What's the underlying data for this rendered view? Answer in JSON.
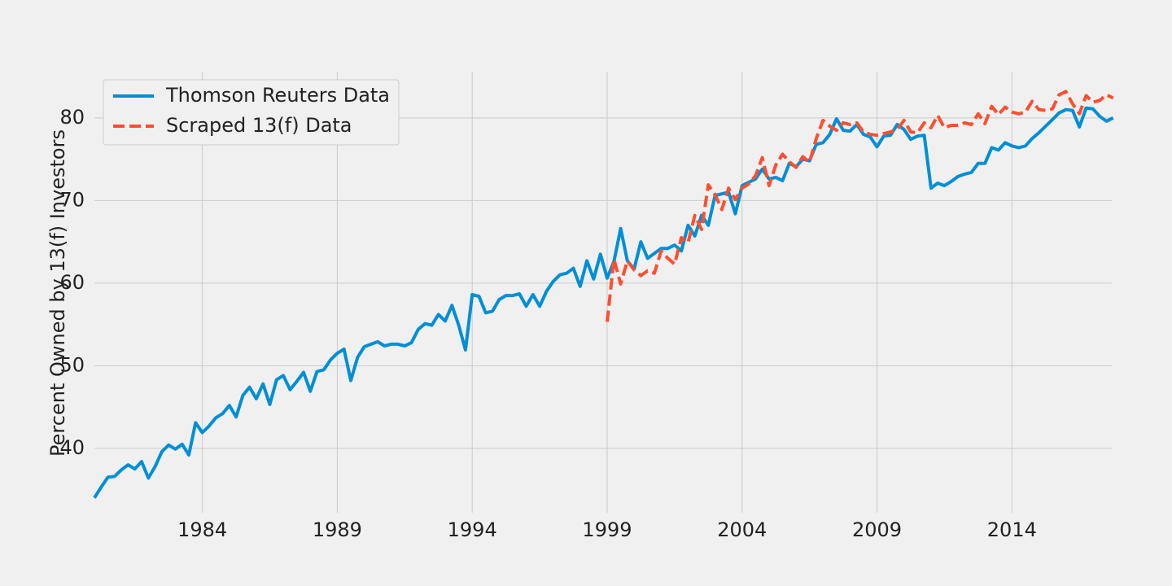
{
  "chart_data": {
    "type": "line",
    "title": "",
    "xlabel": "",
    "ylabel": "Percent Owned by 13(f) Investors",
    "xlim": [
      1980.0,
      2017.7
    ],
    "ylim": [
      32.2,
      85.6
    ],
    "xticks": [
      1984,
      1989,
      1994,
      1999,
      2004,
      2009,
      2014
    ],
    "xtick_labels": [
      "1984",
      "1989",
      "1994",
      "1999",
      "2004",
      "2009",
      "2014"
    ],
    "yticks": [
      40,
      50,
      60,
      70,
      80
    ],
    "ytick_labels": [
      "40",
      "50",
      "60",
      "70",
      "80"
    ],
    "grid": true,
    "legend_position": "upper-left",
    "series": [
      {
        "name": "Thomson Reuters Data",
        "color": "#008fd5",
        "dash": "solid",
        "x": [
          1980.0,
          1980.25,
          1980.5,
          1980.75,
          1981.0,
          1981.25,
          1981.5,
          1981.75,
          1982.0,
          1982.25,
          1982.5,
          1982.75,
          1983.0,
          1983.25,
          1983.5,
          1983.75,
          1984.0,
          1984.25,
          1984.5,
          1984.75,
          1985.0,
          1985.25,
          1985.5,
          1985.75,
          1986.0,
          1986.25,
          1986.5,
          1986.75,
          1987.0,
          1987.25,
          1987.5,
          1987.75,
          1988.0,
          1988.25,
          1988.5,
          1988.75,
          1989.0,
          1989.25,
          1989.5,
          1989.75,
          1990.0,
          1990.25,
          1990.5,
          1990.75,
          1991.0,
          1991.25,
          1991.5,
          1991.75,
          1992.0,
          1992.25,
          1992.5,
          1992.75,
          1993.0,
          1993.25,
          1993.5,
          1993.75,
          1994.0,
          1994.25,
          1994.5,
          1994.75,
          1995.0,
          1995.25,
          1995.5,
          1995.75,
          1996.0,
          1996.25,
          1996.5,
          1996.75,
          1997.0,
          1997.25,
          1997.5,
          1997.75,
          1998.0,
          1998.25,
          1998.5,
          1998.75,
          1999.0,
          1999.25,
          1999.5,
          1999.75,
          2000.0,
          2000.25,
          2000.5,
          2000.75,
          2001.0,
          2001.25,
          2001.5,
          2001.75,
          2002.0,
          2002.25,
          2002.5,
          2002.75,
          2003.0,
          2003.25,
          2003.5,
          2003.75,
          2004.0,
          2004.25,
          2004.5,
          2004.75,
          2005.0,
          2005.25,
          2005.5,
          2005.75,
          2006.0,
          2006.25,
          2006.5,
          2006.75,
          2007.0,
          2007.25,
          2007.5,
          2007.75,
          2008.0,
          2008.25,
          2008.5,
          2008.75,
          2009.0,
          2009.25,
          2009.5,
          2009.75,
          2010.0,
          2010.25,
          2010.5,
          2010.75,
          2011.0,
          2011.25,
          2011.5,
          2011.75,
          2012.0,
          2012.25,
          2012.5,
          2012.75,
          2013.0,
          2013.25,
          2013.5,
          2013.75,
          2014.0,
          2014.25,
          2014.5,
          2014.75,
          2015.0,
          2015.25,
          2015.5,
          2015.75,
          2016.0,
          2016.25,
          2016.5,
          2016.75,
          2017.0,
          2017.25,
          2017.5,
          2017.75
        ],
        "y": [
          34.0,
          35.3,
          36.5,
          36.6,
          37.4,
          38.0,
          37.5,
          38.4,
          36.4,
          37.8,
          39.6,
          40.4,
          39.9,
          40.5,
          39.2,
          43.1,
          41.9,
          42.7,
          43.7,
          44.2,
          45.2,
          43.8,
          46.4,
          47.4,
          46.0,
          47.8,
          45.3,
          48.3,
          48.8,
          47.1,
          48.1,
          49.2,
          46.9,
          49.3,
          49.5,
          50.7,
          51.5,
          52.0,
          48.2,
          51.0,
          52.3,
          52.6,
          52.9,
          52.4,
          52.6,
          52.6,
          52.4,
          52.8,
          54.4,
          55.1,
          54.9,
          56.2,
          55.4,
          57.3,
          54.9,
          51.9,
          58.6,
          58.4,
          56.4,
          56.6,
          58.0,
          58.5,
          58.5,
          58.7,
          57.2,
          58.6,
          57.2,
          59.0,
          60.2,
          61.0,
          61.2,
          61.8,
          59.6,
          62.7,
          60.5,
          63.5,
          60.6,
          62.6,
          66.6,
          62.7,
          61.7,
          65.0,
          63.0,
          63.6,
          64.2,
          64.2,
          64.6,
          63.9,
          67.0,
          65.7,
          68.2,
          67.0,
          70.6,
          70.8,
          71.0,
          68.4,
          71.8,
          72.2,
          72.6,
          73.8,
          72.6,
          72.8,
          72.4,
          74.5,
          74.1,
          75.0,
          74.8,
          76.8,
          77.0,
          78.0,
          79.9,
          78.5,
          78.4,
          79.2,
          78.0,
          77.7,
          76.5,
          77.8,
          77.9,
          79.2,
          78.6,
          77.4,
          77.8,
          77.9,
          71.5,
          72.1,
          71.8,
          72.3,
          72.9,
          73.2,
          73.4,
          74.5,
          74.5,
          76.4,
          76.1,
          77.0,
          76.6,
          76.4,
          76.6,
          77.5,
          78.2,
          79.0,
          79.8,
          80.6,
          81.0,
          80.9,
          78.9,
          81.2,
          81.1,
          80.2,
          79.6,
          80.0
        ]
      },
      {
        "name": "Scraped 13(f) Data",
        "color": "#fc4f30",
        "dash": "dashed",
        "x": [
          1999.0,
          1999.25,
          1999.5,
          1999.75,
          2000.0,
          2000.25,
          2000.5,
          2000.75,
          2001.0,
          2001.25,
          2001.5,
          2001.75,
          2002.0,
          2002.25,
          2002.5,
          2002.75,
          2003.0,
          2003.25,
          2003.5,
          2003.75,
          2004.0,
          2004.25,
          2004.5,
          2004.75,
          2005.0,
          2005.25,
          2005.5,
          2005.75,
          2006.0,
          2006.25,
          2006.5,
          2006.75,
          2007.0,
          2007.25,
          2007.5,
          2007.75,
          2008.0,
          2008.25,
          2008.5,
          2008.75,
          2009.0,
          2009.25,
          2009.5,
          2009.75,
          2010.0,
          2010.25,
          2010.5,
          2010.75,
          2011.0,
          2011.25,
          2011.5,
          2011.75,
          2012.0,
          2012.25,
          2012.5,
          2012.75,
          2013.0,
          2013.25,
          2013.5,
          2013.75,
          2014.0,
          2014.25,
          2014.5,
          2014.75,
          2015.0,
          2015.25,
          2015.5,
          2015.75,
          2016.0,
          2016.25,
          2016.5,
          2016.75,
          2017.0,
          2017.25,
          2017.5,
          2017.75
        ],
        "y": [
          55.3,
          62.9,
          59.9,
          62.7,
          61.6,
          60.9,
          61.5,
          61.2,
          63.9,
          63.0,
          62.3,
          65.5,
          64.9,
          68.2,
          66.5,
          71.9,
          70.7,
          68.9,
          71.5,
          70.1,
          71.5,
          72.0,
          73.0,
          75.2,
          71.8,
          74.3,
          75.6,
          74.7,
          74.0,
          75.3,
          74.6,
          77.5,
          79.7,
          79.0,
          78.5,
          79.4,
          79.2,
          79.4,
          78.3,
          78.0,
          77.9,
          78.1,
          78.3,
          78.6,
          79.7,
          78.3,
          78.2,
          79.4,
          78.8,
          80.3,
          78.8,
          79.1,
          79.1,
          79.4,
          79.2,
          80.5,
          79.3,
          81.4,
          80.4,
          81.3,
          80.7,
          80.5,
          80.7,
          82.0,
          81.0,
          80.9,
          81.1,
          82.8,
          83.2,
          81.7,
          80.5,
          82.7,
          81.9,
          82.1,
          82.8,
          82.4
        ]
      }
    ]
  }
}
